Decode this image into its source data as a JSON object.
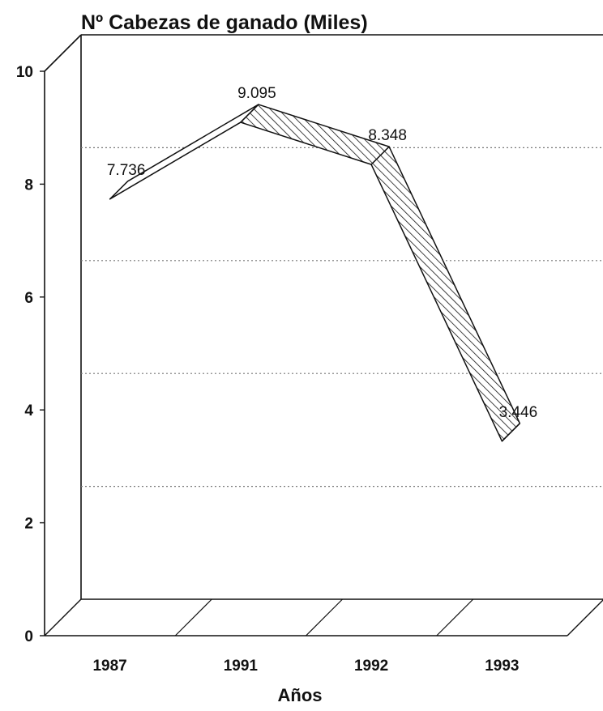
{
  "chart_data": {
    "type": "line",
    "style": "3d-ribbon",
    "title": "Nº Cabezas de ganado (Miles)",
    "xlabel": "Años",
    "ylabel": "",
    "categories": [
      "1987",
      "1991",
      "1992",
      "1993"
    ],
    "values": [
      7.736,
      9.095,
      8.348,
      3.446
    ],
    "data_labels": [
      "7.736",
      "9.095",
      "8.348",
      "3.446"
    ],
    "ylim": [
      0,
      10
    ],
    "yticks": [
      0,
      2,
      4,
      6,
      8,
      10
    ],
    "grid": "dotted horizontal on back wall",
    "fill_pattern": "diagonal hatch",
    "colors": {
      "line": "#111111",
      "grid": "#777777",
      "background": "#ffffff"
    }
  }
}
